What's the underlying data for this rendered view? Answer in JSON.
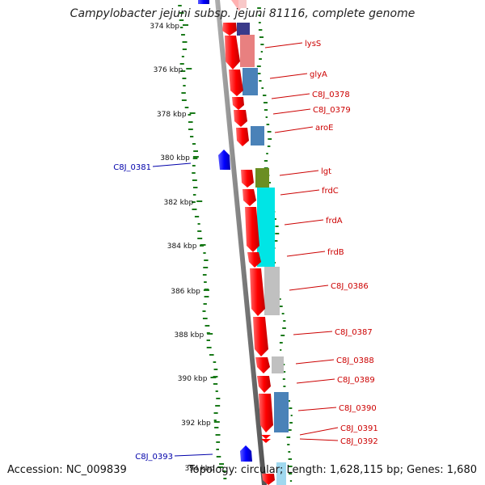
{
  "title": "Campylobacter jejuni subsp. jejuni 81116, complete genome",
  "accession": "Accession: NC_009839",
  "summary": "Topology: circular; Length: 1,628,115 bp; Genes: 1,680",
  "ticks": [
    "374 kbp",
    "376 kbp",
    "378 kbp",
    "380 kbp",
    "382 kbp",
    "384 kbp",
    "386 kbp",
    "388 kbp",
    "390 kbp",
    "392 kbp",
    "394 kbp"
  ],
  "forward_genes": [
    {
      "label": "lysS",
      "color": "#ff0000"
    },
    {
      "label": "glyA",
      "color": "#ff0000"
    },
    {
      "label": "C8J_0378",
      "color": "#ff0000"
    },
    {
      "label": "C8J_0379",
      "color": "#ff0000"
    },
    {
      "label": "aroE",
      "color": "#ff0000"
    },
    {
      "label": "lgt",
      "color": "#ff0000"
    },
    {
      "label": "frdC",
      "color": "#ff0000"
    },
    {
      "label": "frdA",
      "color": "#ff0000"
    },
    {
      "label": "frdB",
      "color": "#ff0000"
    },
    {
      "label": "C8J_0386",
      "color": "#ff0000"
    },
    {
      "label": "C8J_0387",
      "color": "#ff0000"
    },
    {
      "label": "C8J_0388",
      "color": "#ff0000"
    },
    {
      "label": "C8J_0389",
      "color": "#ff0000"
    },
    {
      "label": "C8J_0390",
      "color": "#ff0000"
    },
    {
      "label": "C8J_0391",
      "color": "#ff0000"
    },
    {
      "label": "C8J_0392",
      "color": "#ff0000"
    }
  ],
  "reverse_genes": [
    {
      "label": "C8J_0381",
      "color": "#0000ff"
    },
    {
      "label": "C8J_0393",
      "color": "#0000ff"
    }
  ],
  "cog_colors": [
    "#3a3a8a",
    "#e88080",
    "#4a82b8",
    "#4a82b8",
    "#6b8e23",
    "#00e5e5",
    "#c0c0c0",
    "#c0c0c0",
    "#4a82b8",
    "#a0d8ef"
  ],
  "colors": {
    "forward_label": "#cc0000",
    "reverse_label": "#0000aa",
    "backbone": "#808080",
    "gc_skew": "#1a7a1a"
  }
}
